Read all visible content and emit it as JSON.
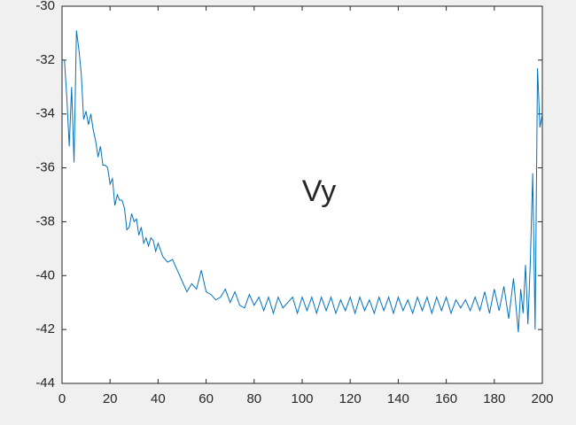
{
  "chart_data": {
    "type": "line",
    "annotation": "Vy",
    "annotation_color": "#e8251b",
    "x": [
      1,
      2,
      3,
      4,
      5,
      6,
      7,
      8,
      9,
      10,
      11,
      12,
      13,
      14,
      15,
      16,
      17,
      18,
      19,
      20,
      21,
      22,
      23,
      24,
      25,
      26,
      27,
      28,
      29,
      30,
      31,
      32,
      33,
      34,
      35,
      36,
      37,
      38,
      39,
      40,
      42,
      44,
      46,
      48,
      50,
      52,
      54,
      56,
      58,
      60,
      62,
      64,
      66,
      68,
      70,
      72,
      74,
      76,
      78,
      80,
      82,
      84,
      86,
      88,
      90,
      92,
      94,
      96,
      98,
      100,
      102,
      104,
      106,
      108,
      110,
      112,
      114,
      116,
      118,
      120,
      122,
      124,
      126,
      128,
      130,
      132,
      134,
      136,
      138,
      140,
      142,
      144,
      146,
      148,
      150,
      152,
      154,
      156,
      158,
      160,
      162,
      164,
      166,
      168,
      170,
      172,
      174,
      176,
      178,
      180,
      182,
      184,
      186,
      188,
      190,
      191,
      192,
      193,
      194,
      195,
      196,
      197,
      198,
      199,
      200
    ],
    "series": [
      {
        "color": "#0072bd",
        "values": [
          -32.0,
          -33.4,
          -35.2,
          -33.0,
          -35.8,
          -30.9,
          -31.6,
          -32.5,
          -34.2,
          -33.9,
          -34.4,
          -34.0,
          -34.6,
          -35.0,
          -35.6,
          -35.2,
          -35.9,
          -35.9,
          -36.0,
          -36.6,
          -36.4,
          -37.4,
          -37.0,
          -37.2,
          -37.2,
          -37.5,
          -38.3,
          -38.2,
          -37.7,
          -38.0,
          -37.9,
          -38.5,
          -38.2,
          -38.8,
          -38.6,
          -38.9,
          -38.6,
          -38.7,
          -39.1,
          -38.8,
          -39.3,
          -39.5,
          -39.4,
          -39.8,
          -40.2,
          -40.6,
          -40.3,
          -40.5,
          -39.8,
          -40.6,
          -40.7,
          -40.9,
          -40.8,
          -40.5,
          -41.0,
          -40.6,
          -41.1,
          -41.2,
          -40.7,
          -41.1,
          -40.8,
          -41.3,
          -40.8,
          -41.4,
          -40.8,
          -41.2,
          -41.0,
          -40.8,
          -41.4,
          -40.8,
          -41.3,
          -40.8,
          -41.4,
          -40.8,
          -41.3,
          -40.8,
          -41.4,
          -40.9,
          -41.3,
          -40.8,
          -41.4,
          -40.8,
          -41.3,
          -40.9,
          -41.4,
          -40.8,
          -41.3,
          -40.8,
          -41.4,
          -40.8,
          -41.3,
          -40.9,
          -41.4,
          -40.8,
          -41.3,
          -40.8,
          -41.4,
          -40.8,
          -41.3,
          -40.8,
          -41.4,
          -40.9,
          -41.2,
          -40.9,
          -41.3,
          -40.8,
          -41.3,
          -40.6,
          -41.4,
          -40.5,
          -41.3,
          -40.4,
          -41.6,
          -40.1,
          -42.1,
          -40.5,
          -41.4,
          -39.6,
          -41.8,
          -39.5,
          -36.2,
          -42.0,
          -32.3,
          -34.5,
          -34.0
        ]
      }
    ],
    "xlim": [
      0,
      200
    ],
    "xticks": [
      0,
      20,
      40,
      60,
      80,
      100,
      120,
      140,
      160,
      180,
      200
    ],
    "ylim": [
      -44,
      -30
    ],
    "yticks": [
      -44,
      -42,
      -40,
      -38,
      -36,
      -34,
      -32,
      -30
    ]
  }
}
